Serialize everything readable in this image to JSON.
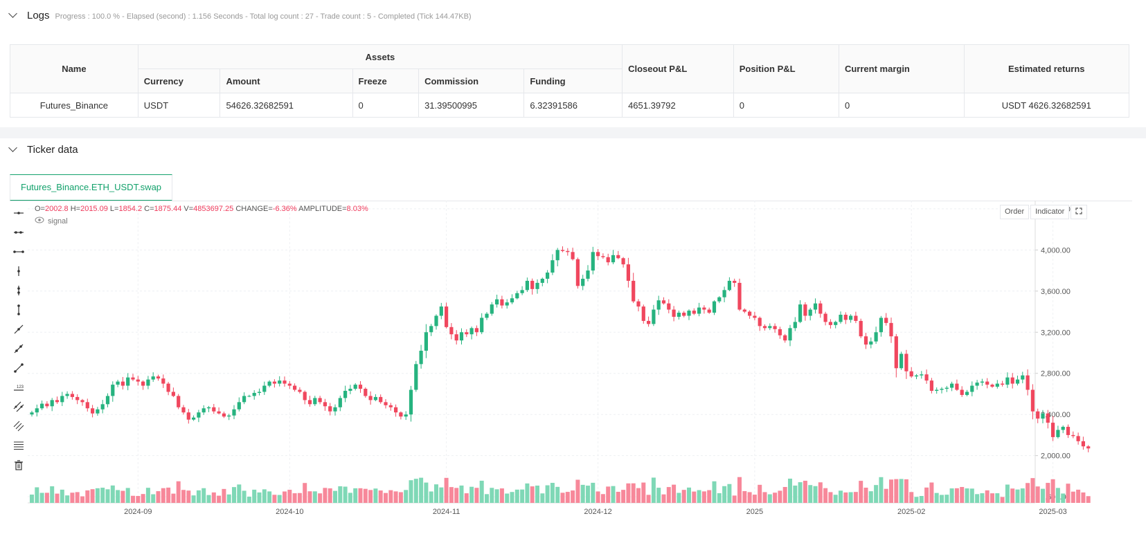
{
  "logs": {
    "title": "Logs",
    "summary": "Progress : 100.0 % - Elapsed (second) : 1.156  Seconds - Total log count : 27 - Trade count : 5 - Completed (Tick 144.47KB)",
    "headers": {
      "name": "Name",
      "assets": "Assets",
      "currency": "Currency",
      "amount": "Amount",
      "freeze": "Freeze",
      "commission": "Commission",
      "funding": "Funding",
      "closeout": "Closeout P&L",
      "position": "Position P&L",
      "margin": "Current margin",
      "returns": "Estimated returns"
    },
    "row": {
      "name": "Futures_Binance",
      "currency": "USDT",
      "amount": "54626.32682591",
      "freeze": "0",
      "commission": "31.39500995",
      "funding": "6.32391586",
      "closeout": "4651.39792",
      "position": "0",
      "margin": "0",
      "returns": "USDT 4626.32682591"
    }
  },
  "ticker": {
    "title": "Ticker data",
    "tab": "Futures_Binance.ETH_USDT.swap",
    "ohlc": {
      "o_label": "O=",
      "o": "2002.8",
      "h_label": "H=",
      "h": "2015.09",
      "l_label": "L=",
      "l": "1854.2",
      "c_label": "C=",
      "c": "1875.44",
      "v_label": "V=",
      "v": "4853697.25",
      "change_label": "CHANGE=",
      "change": "-6.36%",
      "amp_label": "AMPLITUDE=",
      "amp": "8.03%"
    },
    "signal_label": "signal",
    "buttons": {
      "order": "Order",
      "indicator": "Indicator"
    },
    "tools": [
      "horizontal-line-icon",
      "horizontal-ray-icon",
      "extended-line-icon",
      "vertical-line-icon",
      "vertical-segment-icon",
      "vertical-extended-icon",
      "trend-line-icon",
      "ray-icon",
      "extended-trend-icon",
      "price-range-icon",
      "parallel-channel-icon",
      "multi-channel-icon",
      "fib-retracement-icon",
      "trash-icon"
    ]
  },
  "colors": {
    "up": "#26b37f",
    "down": "#f0475e",
    "up_vol": "#7fd8b6",
    "down_vol": "#f7889a",
    "accent": "#12a16b"
  },
  "chart_data": {
    "type": "candlestick",
    "symbol": "Futures_Binance.ETH_USDT.swap",
    "y_ticks": [
      1600,
      2000,
      2400,
      2800,
      3200,
      3600,
      4000,
      4400
    ],
    "y_range": [
      1520,
      4480
    ],
    "x_ticks": [
      "2024-09",
      "2024-10",
      "2024-11",
      "2024-12",
      "2025",
      "2025-02",
      "2025-03"
    ],
    "x_tick_dates": [
      "2024-09-01",
      "2024-10-01",
      "2024-11-01",
      "2024-12-01",
      "2025-01-01",
      "2025-02-01",
      "2025-03-01"
    ],
    "start_date": "2024-08-11",
    "series": [
      {
        "name": "ETH_USDT",
        "closes": [
          2420,
          2460,
          2505,
          2480,
          2540,
          2520,
          2580,
          2600,
          2570,
          2540,
          2520,
          2460,
          2410,
          2450,
          2500,
          2580,
          2690,
          2720,
          2680,
          2760,
          2740,
          2720,
          2680,
          2740,
          2770,
          2750,
          2700,
          2620,
          2580,
          2470,
          2420,
          2350,
          2370,
          2420,
          2460,
          2470,
          2430,
          2410,
          2380,
          2390,
          2450,
          2520,
          2580,
          2580,
          2610,
          2620,
          2680,
          2720,
          2700,
          2730,
          2700,
          2680,
          2640,
          2620,
          2540,
          2500,
          2560,
          2520,
          2480,
          2430,
          2470,
          2560,
          2630,
          2650,
          2690,
          2650,
          2580,
          2540,
          2570,
          2520,
          2490,
          2470,
          2420,
          2380,
          2400,
          2640,
          2890,
          3020,
          3200,
          3260,
          3360,
          3450,
          3250,
          3180,
          3120,
          3200,
          3180,
          3240,
          3200,
          3340,
          3380,
          3470,
          3520,
          3460,
          3490,
          3530,
          3580,
          3610,
          3700,
          3620,
          3680,
          3720,
          3780,
          3900,
          4000,
          3990,
          3980,
          3910,
          3650,
          3720,
          3800,
          3980,
          3940,
          3930,
          3880,
          3950,
          3920,
          3860,
          3700,
          3500,
          3450,
          3310,
          3280,
          3420,
          3510,
          3480,
          3420,
          3350,
          3390,
          3360,
          3410,
          3380,
          3440,
          3420,
          3390,
          3500,
          3540,
          3610,
          3700,
          3680,
          3420,
          3400,
          3360,
          3340,
          3260,
          3240,
          3260,
          3230,
          3170,
          3120,
          3240,
          3300,
          3470,
          3360,
          3420,
          3480,
          3380,
          3300,
          3270,
          3300,
          3370,
          3320,
          3360,
          3310,
          3160,
          3080,
          3110,
          3200,
          3340,
          3290,
          3160,
          2850,
          2990,
          2820,
          2770,
          2780,
          2790,
          2730,
          2630,
          2640,
          2650,
          2660,
          2700,
          2640,
          2590,
          2620,
          2680,
          2710,
          2720,
          2690,
          2670,
          2700,
          2690,
          2760,
          2700,
          2740,
          2780,
          2640,
          2430,
          2360,
          2410,
          2320,
          2180,
          2250,
          2280,
          2200,
          2190,
          2140,
          2090,
          2070,
          2000,
          1890,
          1870,
          1860,
          1880,
          1920,
          1940,
          1960,
          1960,
          1960,
          1990,
          2020,
          2060,
          2100,
          2100,
          2050,
          1990,
          1990,
          1980,
          1870
        ]
      }
    ],
    "last_bar": {
      "o": 2002.8,
      "h": 2015.09,
      "l": 1854.2,
      "c": 1875.44,
      "v": 4853697.25,
      "change": "-6.36%",
      "amplitude": "8.03%"
    },
    "volume_shown": true,
    "grid": true
  }
}
